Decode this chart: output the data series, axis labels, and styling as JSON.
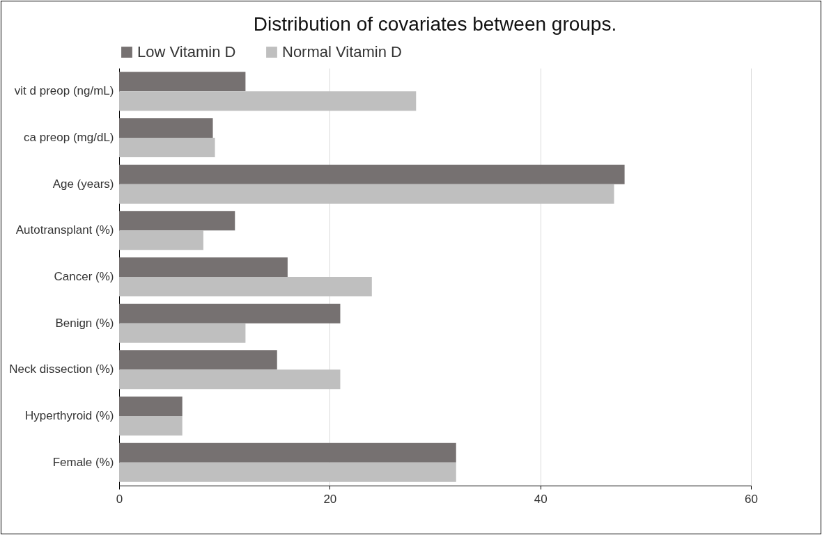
{
  "chart_data": {
    "type": "bar",
    "orientation": "horizontal",
    "title": "Distribution of covariates between  groups.",
    "categories": [
      "vit d preop (ng/mL)",
      "ca preop (mg/dL)",
      "Age (years)",
      "Autotransplant (%)",
      "Cancer (%)",
      "Benign (%)",
      "Neck dissection (%)",
      "Hyperthyroid (%)",
      "Female (%)"
    ],
    "series": [
      {
        "name": "Low Vitamin D",
        "color": "#767171",
        "values": [
          12,
          8.9,
          48,
          11,
          16,
          21,
          15,
          6,
          32
        ]
      },
      {
        "name": "Normal Vitamin D",
        "color": "#bfbfbf",
        "values": [
          28.2,
          9.1,
          47,
          8,
          24,
          12,
          21,
          6,
          32
        ]
      }
    ],
    "xlim": [
      0,
      60
    ],
    "xticks": [
      0,
      20,
      40,
      60
    ],
    "grid": "x",
    "legend": "top"
  }
}
